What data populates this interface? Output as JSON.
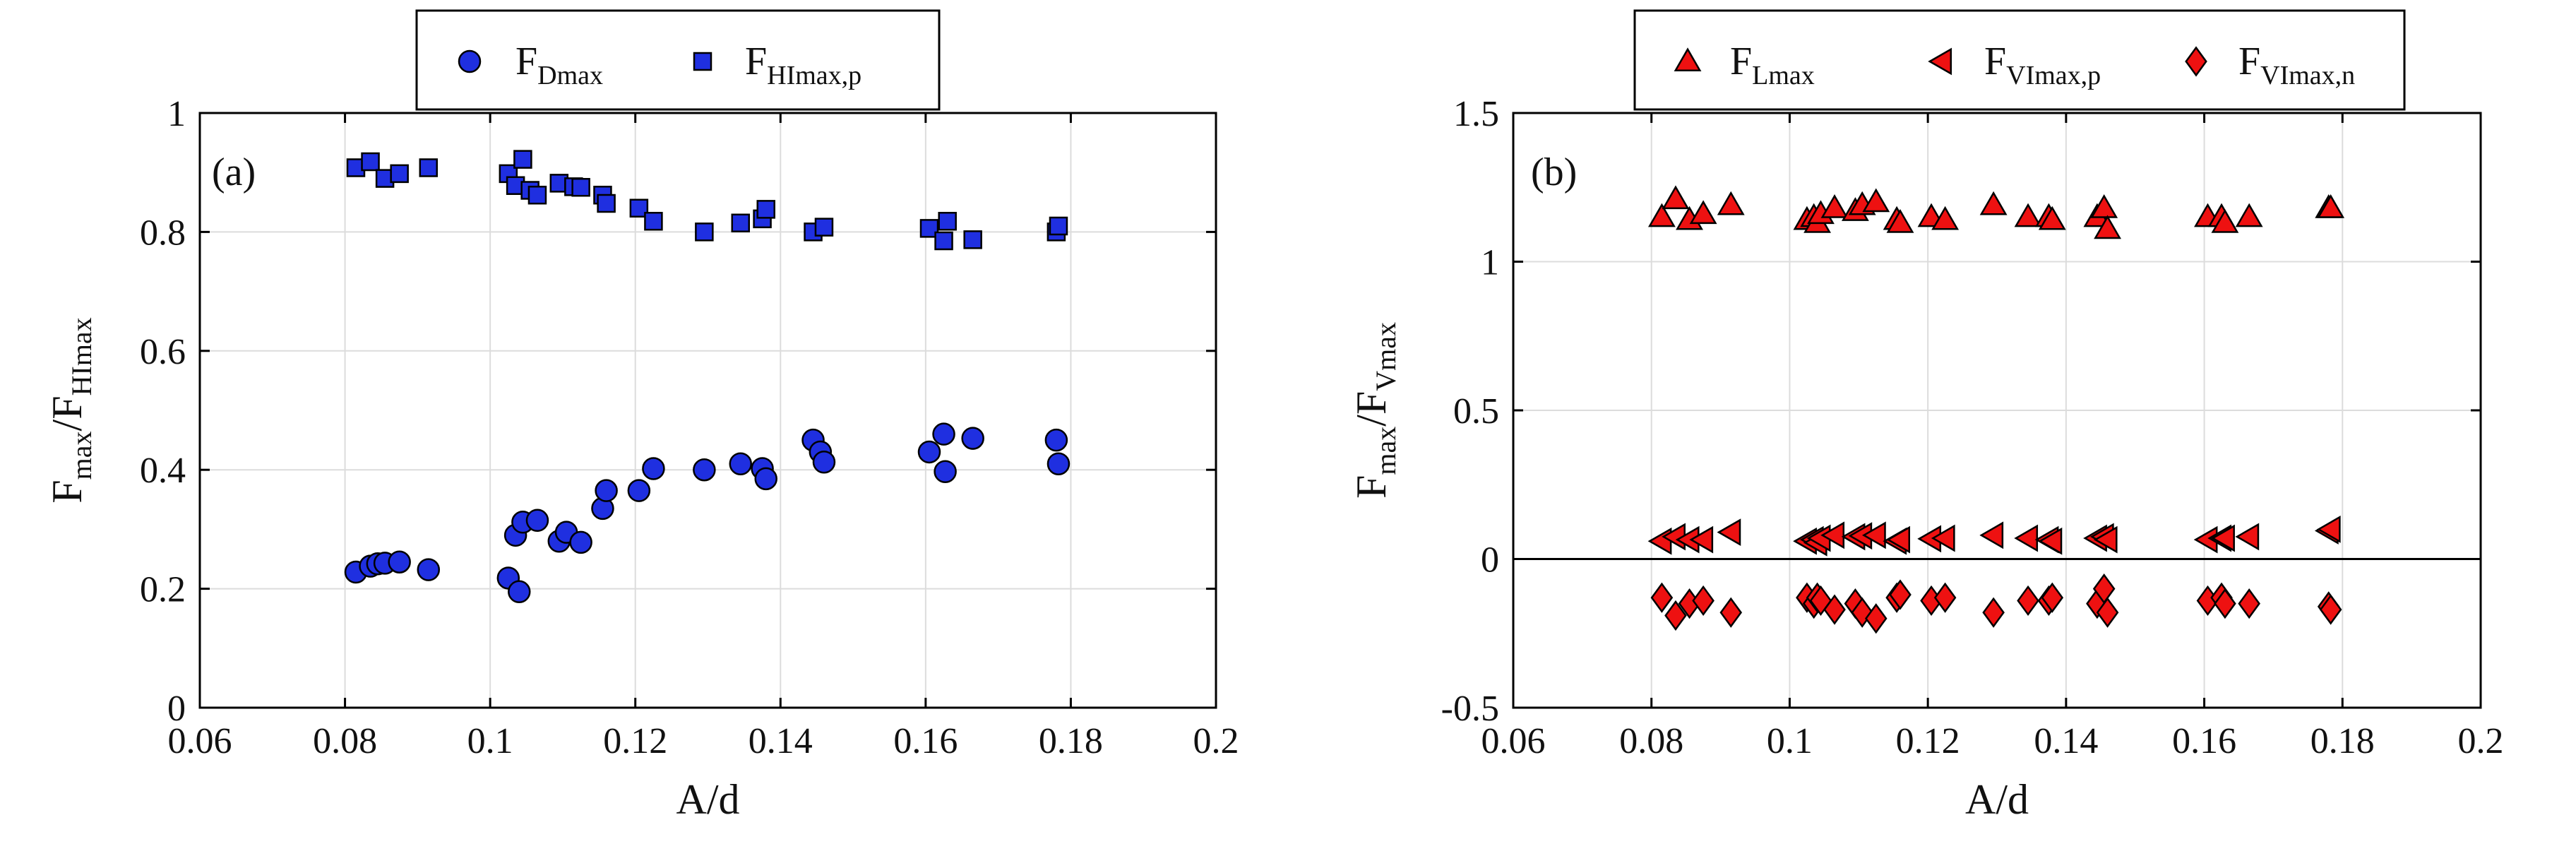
{
  "chart_data": [
    {
      "panel": "(a)",
      "type": "scatter",
      "xlabel": "A/d",
      "ylabel": {
        "base1": "F",
        "sub1": "max",
        "slash": "/F",
        "sub2": "HImax"
      },
      "xlim": [
        0.06,
        0.2
      ],
      "ylim": [
        0,
        1
      ],
      "xticks": [
        0.06,
        0.08,
        0.1,
        0.12,
        0.14,
        0.16,
        0.18,
        0.2
      ],
      "xtick_labels": [
        "0.06",
        "0.08",
        "0.1",
        "0.12",
        "0.14",
        "0.16",
        "0.18",
        "0.2"
      ],
      "yticks": [
        0,
        0.2,
        0.4,
        0.6,
        0.8,
        1
      ],
      "ytick_labels": [
        "0",
        "0.2",
        "0.4",
        "0.6",
        "0.8",
        "1"
      ],
      "grid": true,
      "legend_position": "top-center",
      "colors": {
        "fill": "#1f2fe0",
        "edge": "#000000"
      },
      "series": [
        {
          "name": "F_Dmax",
          "label_base": "F",
          "label_sub": "Dmax",
          "marker": "circle",
          "points": [
            [
              0.0815,
              0.228
            ],
            [
              0.0835,
              0.238
            ],
            [
              0.0845,
              0.242
            ],
            [
              0.0855,
              0.243
            ],
            [
              0.0875,
              0.245
            ],
            [
              0.0915,
              0.232
            ],
            [
              0.1025,
              0.218
            ],
            [
              0.1035,
              0.29
            ],
            [
              0.104,
              0.195
            ],
            [
              0.1045,
              0.312
            ],
            [
              0.1065,
              0.315
            ],
            [
              0.1095,
              0.28
            ],
            [
              0.1105,
              0.295
            ],
            [
              0.1125,
              0.278
            ],
            [
              0.1155,
              0.335
            ],
            [
              0.116,
              0.365
            ],
            [
              0.1205,
              0.365
            ],
            [
              0.1225,
              0.402
            ],
            [
              0.1295,
              0.4
            ],
            [
              0.1345,
              0.41
            ],
            [
              0.1375,
              0.402
            ],
            [
              0.138,
              0.385
            ],
            [
              0.1445,
              0.45
            ],
            [
              0.1455,
              0.43
            ],
            [
              0.146,
              0.413
            ],
            [
              0.1605,
              0.43
            ],
            [
              0.1625,
              0.46
            ],
            [
              0.1627,
              0.397
            ],
            [
              0.1665,
              0.453
            ],
            [
              0.178,
              0.45
            ],
            [
              0.1783,
              0.41
            ]
          ]
        },
        {
          "name": "F_HImax,p",
          "label_base": "F",
          "label_sub": "HImax,p",
          "marker": "square",
          "points": [
            [
              0.0815,
              0.908
            ],
            [
              0.0835,
              0.918
            ],
            [
              0.0855,
              0.89
            ],
            [
              0.0875,
              0.898
            ],
            [
              0.0915,
              0.908
            ],
            [
              0.1025,
              0.898
            ],
            [
              0.1035,
              0.878
            ],
            [
              0.1045,
              0.922
            ],
            [
              0.1055,
              0.87
            ],
            [
              0.1065,
              0.862
            ],
            [
              0.1095,
              0.882
            ],
            [
              0.1115,
              0.876
            ],
            [
              0.1125,
              0.875
            ],
            [
              0.1155,
              0.862
            ],
            [
              0.116,
              0.848
            ],
            [
              0.1205,
              0.84
            ],
            [
              0.1225,
              0.818
            ],
            [
              0.1295,
              0.8
            ],
            [
              0.1345,
              0.815
            ],
            [
              0.1375,
              0.822
            ],
            [
              0.138,
              0.838
            ],
            [
              0.1445,
              0.8
            ],
            [
              0.146,
              0.808
            ],
            [
              0.1605,
              0.806
            ],
            [
              0.1625,
              0.785
            ],
            [
              0.163,
              0.818
            ],
            [
              0.1665,
              0.787
            ],
            [
              0.178,
              0.8
            ],
            [
              0.1783,
              0.81
            ]
          ]
        }
      ]
    },
    {
      "panel": "(b)",
      "type": "scatter",
      "xlabel": "A/d",
      "ylabel": {
        "base1": "F",
        "sub1": "max",
        "slash": "/F",
        "sub2": "Vmax"
      },
      "xlim": [
        0.06,
        0.2
      ],
      "ylim": [
        -0.5,
        1.5
      ],
      "xticks": [
        0.06,
        0.08,
        0.1,
        0.12,
        0.14,
        0.16,
        0.18,
        0.2
      ],
      "xtick_labels": [
        "0.06",
        "0.08",
        "0.1",
        "0.12",
        "0.14",
        "0.16",
        "0.18",
        "0.2"
      ],
      "yticks": [
        -0.5,
        0,
        0.5,
        1,
        1.5
      ],
      "ytick_labels": [
        "-0.5",
        "0",
        "0.5",
        "1",
        "1.5"
      ],
      "grid": true,
      "zero_line": true,
      "legend_position": "top-center",
      "colors": {
        "fill": "#ee1111",
        "edge": "#000000"
      },
      "series": [
        {
          "name": "F_Lmax",
          "label_base": "F",
          "label_sub": "Lmax",
          "marker": "triangle-up",
          "points": [
            [
              0.0815,
              1.15
            ],
            [
              0.0835,
              1.21
            ],
            [
              0.0855,
              1.14
            ],
            [
              0.0875,
              1.16
            ],
            [
              0.0915,
              1.19
            ],
            [
              0.1025,
              1.14
            ],
            [
              0.1035,
              1.15
            ],
            [
              0.104,
              1.13
            ],
            [
              0.1045,
              1.16
            ],
            [
              0.1065,
              1.18
            ],
            [
              0.1095,
              1.17
            ],
            [
              0.1105,
              1.19
            ],
            [
              0.1125,
              1.2
            ],
            [
              0.1155,
              1.14
            ],
            [
              0.116,
              1.13
            ],
            [
              0.1205,
              1.15
            ],
            [
              0.1225,
              1.14
            ],
            [
              0.1295,
              1.19
            ],
            [
              0.1345,
              1.15
            ],
            [
              0.1375,
              1.15
            ],
            [
              0.138,
              1.14
            ],
            [
              0.1445,
              1.15
            ],
            [
              0.1455,
              1.18
            ],
            [
              0.146,
              1.11
            ],
            [
              0.1605,
              1.15
            ],
            [
              0.1625,
              1.15
            ],
            [
              0.163,
              1.13
            ],
            [
              0.1665,
              1.15
            ],
            [
              0.178,
              1.18
            ],
            [
              0.1783,
              1.18
            ]
          ]
        },
        {
          "name": "F_VImax,p",
          "label_base": "F",
          "label_sub": "VImax,p",
          "marker": "triangle-left",
          "points": [
            [
              0.0815,
              0.06
            ],
            [
              0.0835,
              0.075
            ],
            [
              0.0855,
              0.065
            ],
            [
              0.0875,
              0.065
            ],
            [
              0.0915,
              0.09
            ],
            [
              0.1025,
              0.06
            ],
            [
              0.1035,
              0.065
            ],
            [
              0.104,
              0.055
            ],
            [
              0.1045,
              0.07
            ],
            [
              0.1065,
              0.08
            ],
            [
              0.1095,
              0.075
            ],
            [
              0.1105,
              0.078
            ],
            [
              0.1125,
              0.08
            ],
            [
              0.1155,
              0.06
            ],
            [
              0.116,
              0.065
            ],
            [
              0.1205,
              0.068
            ],
            [
              0.1225,
              0.07
            ],
            [
              0.1295,
              0.08
            ],
            [
              0.1345,
              0.07
            ],
            [
              0.1375,
              0.065
            ],
            [
              0.138,
              0.06
            ],
            [
              0.1445,
              0.07
            ],
            [
              0.1455,
              0.075
            ],
            [
              0.146,
              0.065
            ],
            [
              0.1605,
              0.065
            ],
            [
              0.1625,
              0.07
            ],
            [
              0.163,
              0.07
            ],
            [
              0.1665,
              0.075
            ],
            [
              0.178,
              0.095
            ],
            [
              0.1783,
              0.1
            ]
          ]
        },
        {
          "name": "F_VImax,n",
          "label_base": "F",
          "label_sub": "VImax,n",
          "marker": "diamond",
          "points": [
            [
              0.0815,
              -0.13
            ],
            [
              0.0835,
              -0.19
            ],
            [
              0.0855,
              -0.15
            ],
            [
              0.0875,
              -0.14
            ],
            [
              0.0915,
              -0.18
            ],
            [
              0.1025,
              -0.13
            ],
            [
              0.1035,
              -0.15
            ],
            [
              0.104,
              -0.13
            ],
            [
              0.1045,
              -0.14
            ],
            [
              0.1065,
              -0.17
            ],
            [
              0.1095,
              -0.15
            ],
            [
              0.1105,
              -0.18
            ],
            [
              0.1125,
              -0.2
            ],
            [
              0.1155,
              -0.13
            ],
            [
              0.116,
              -0.12
            ],
            [
              0.1205,
              -0.14
            ],
            [
              0.1225,
              -0.13
            ],
            [
              0.1295,
              -0.18
            ],
            [
              0.1345,
              -0.14
            ],
            [
              0.1375,
              -0.14
            ],
            [
              0.138,
              -0.13
            ],
            [
              0.1445,
              -0.15
            ],
            [
              0.1455,
              -0.1
            ],
            [
              0.146,
              -0.18
            ],
            [
              0.1605,
              -0.14
            ],
            [
              0.1625,
              -0.13
            ],
            [
              0.163,
              -0.15
            ],
            [
              0.1665,
              -0.15
            ],
            [
              0.178,
              -0.16
            ],
            [
              0.1783,
              -0.17
            ]
          ]
        }
      ]
    }
  ]
}
